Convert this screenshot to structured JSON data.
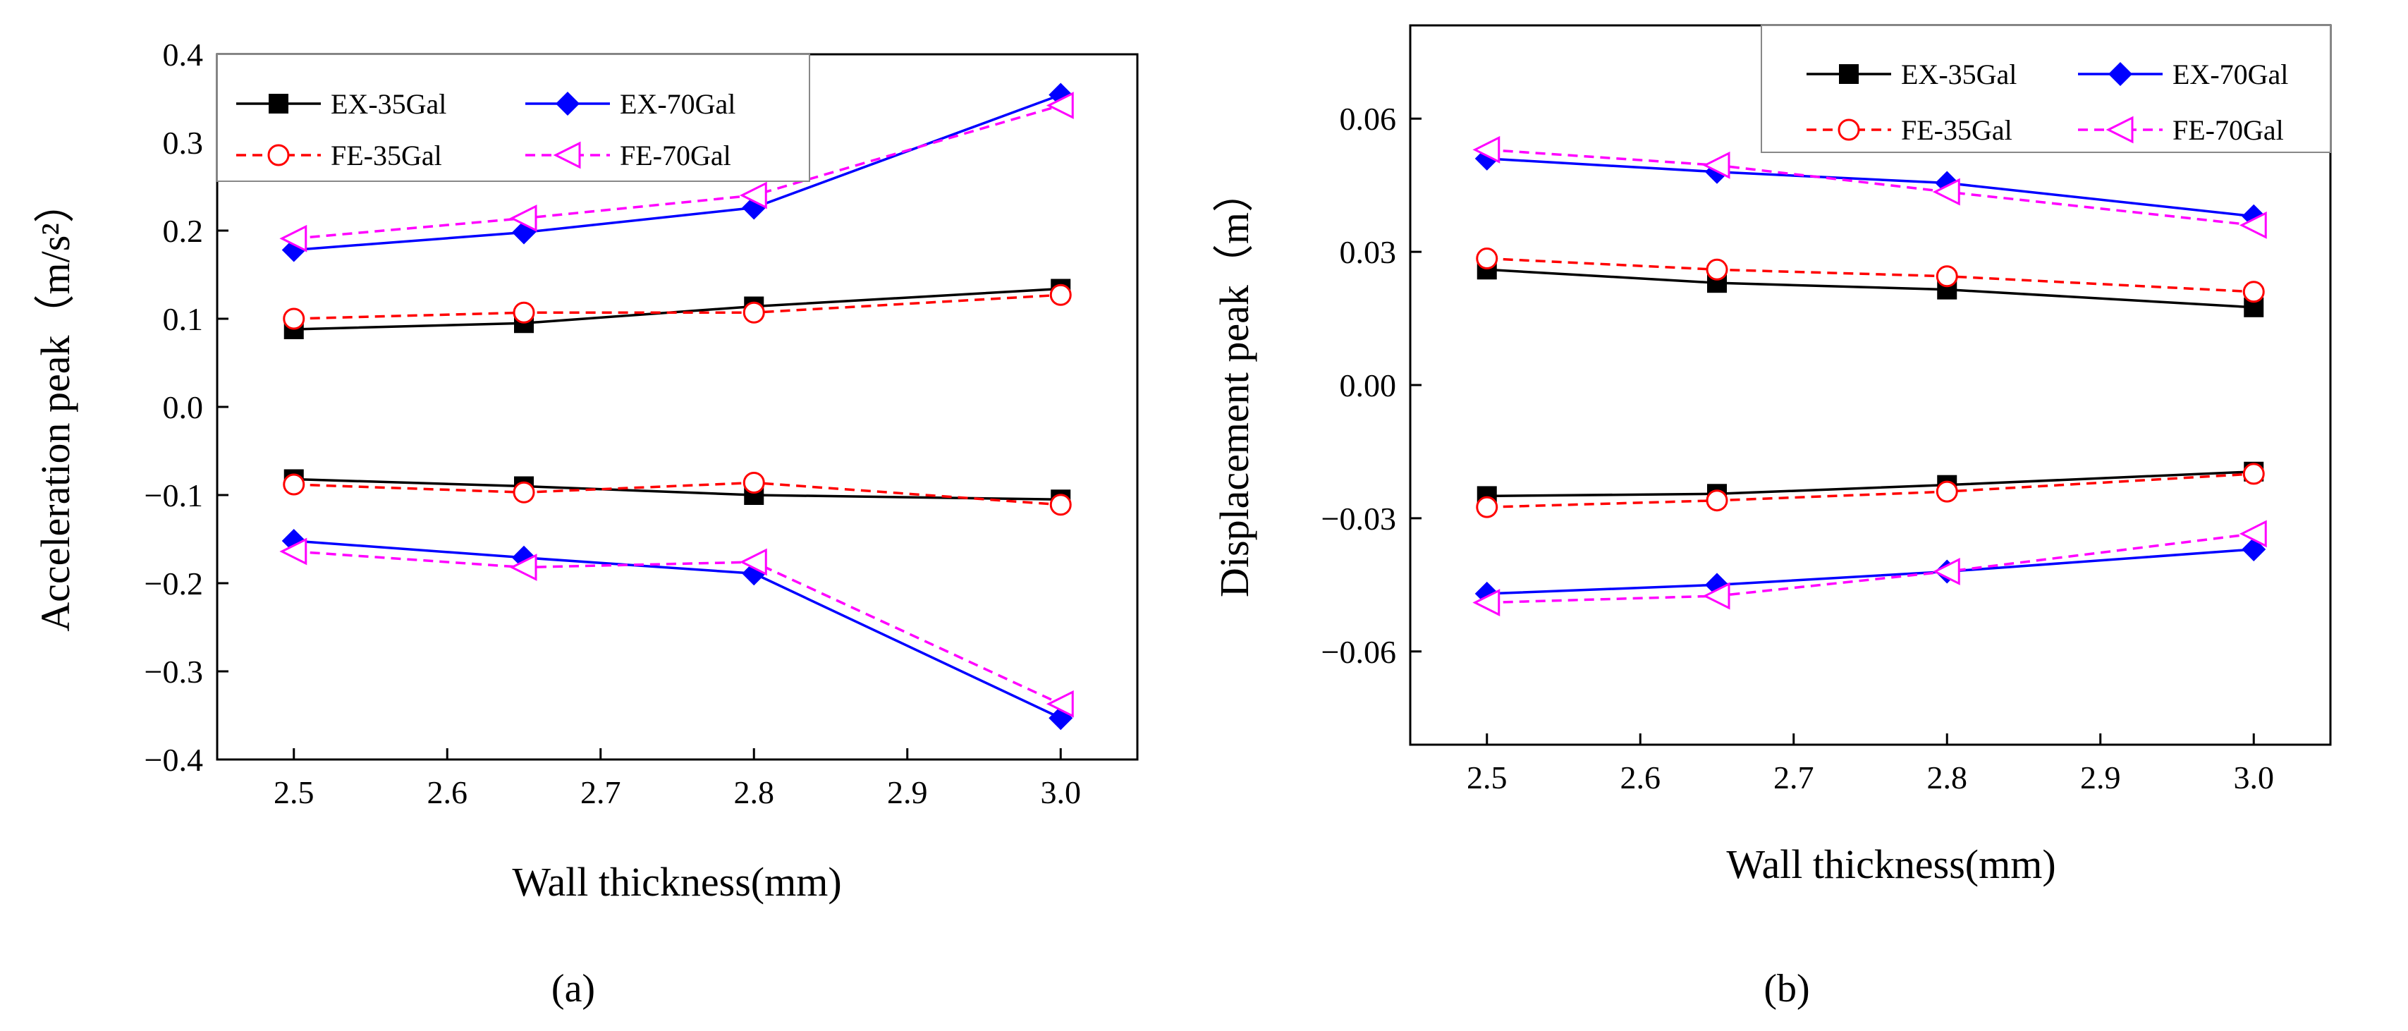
{
  "chart_data": [
    {
      "type": "line",
      "panel_label": "(a)",
      "xlabel": "Wall thickness(mm)",
      "ylabel": "Acceleration peak（m/s²）",
      "xlim": [
        2.45,
        3.05
      ],
      "ylim": [
        -0.4,
        0.4
      ],
      "xticks": [
        2.5,
        2.6,
        2.7,
        2.8,
        2.9,
        3.0
      ],
      "xtick_labels": [
        "2.5",
        "2.6",
        "2.7",
        "2.8",
        "2.9",
        "3.0"
      ],
      "yticks": [
        -0.4,
        -0.3,
        -0.2,
        -0.1,
        0.0,
        0.1,
        0.2,
        0.3,
        0.4
      ],
      "ytick_labels": [
        "-0.4",
        "-0.3",
        "-0.2",
        "-0.1",
        "0.0",
        "0.1",
        "0.2",
        "0.3",
        "0.4"
      ],
      "legend_location": "top-left",
      "series": [
        {
          "name": "EX-35Gal",
          "color": "#000000",
          "dash": "solid",
          "marker": "square",
          "x": [
            2.5,
            2.65,
            2.8,
            3.0
          ],
          "positive": [
            0.088,
            0.095,
            0.114,
            0.134
          ],
          "negative": [
            -0.082,
            -0.09,
            -0.1,
            -0.105
          ]
        },
        {
          "name": "EX-70Gal",
          "color": "#0000ff",
          "dash": "solid",
          "marker": "diamond",
          "x": [
            2.5,
            2.65,
            2.8,
            3.0
          ],
          "positive": [
            0.178,
            0.198,
            0.226,
            0.354
          ],
          "negative": [
            -0.152,
            -0.171,
            -0.189,
            -0.353
          ]
        },
        {
          "name": "FE-35Gal",
          "color": "#ff0000",
          "dash": "dashed",
          "marker": "circle",
          "x": [
            2.5,
            2.65,
            2.8,
            3.0
          ],
          "positive": [
            0.1,
            0.107,
            0.107,
            0.127
          ],
          "negative": [
            -0.088,
            -0.097,
            -0.086,
            -0.111
          ]
        },
        {
          "name": "FE-70Gal",
          "color": "#ff00ff",
          "dash": "dashed",
          "marker": "triangle-left",
          "x": [
            2.5,
            2.65,
            2.8,
            3.0
          ],
          "positive": [
            0.191,
            0.214,
            0.24,
            0.342
          ],
          "negative": [
            -0.164,
            -0.182,
            -0.176,
            -0.337
          ]
        }
      ]
    },
    {
      "type": "line",
      "panel_label": "(b)",
      "xlabel": "Wall thickness(mm)",
      "ylabel": "Displacement peak（m）",
      "xlim": [
        2.45,
        3.05
      ],
      "ylim": [
        -0.081,
        0.081
      ],
      "xticks": [
        2.5,
        2.6,
        2.7,
        2.8,
        2.9,
        3.0
      ],
      "xtick_labels": [
        "2.5",
        "2.6",
        "2.7",
        "2.8",
        "2.9",
        "3.0"
      ],
      "yticks": [
        -0.06,
        -0.03,
        0.0,
        0.03,
        0.06
      ],
      "ytick_labels": [
        "-0.06",
        "-0.03",
        "0.00",
        "0.03",
        "0.06"
      ],
      "legend_location": "top-right",
      "series": [
        {
          "name": "EX-35Gal",
          "color": "#000000",
          "dash": "solid",
          "marker": "square",
          "x": [
            2.5,
            2.65,
            2.8,
            3.0
          ],
          "positive": [
            0.026,
            0.023,
            0.0215,
            0.0175
          ],
          "negative": [
            -0.025,
            -0.0245,
            -0.0225,
            -0.0195
          ]
        },
        {
          "name": "EX-70Gal",
          "color": "#0000ff",
          "dash": "solid",
          "marker": "diamond",
          "x": [
            2.5,
            2.65,
            2.8,
            3.0
          ],
          "positive": [
            0.051,
            0.048,
            0.0455,
            0.038
          ],
          "negative": [
            -0.047,
            -0.045,
            -0.042,
            -0.037
          ]
        },
        {
          "name": "FE-35Gal",
          "color": "#ff0000",
          "dash": "dashed",
          "marker": "circle",
          "x": [
            2.5,
            2.65,
            2.8,
            3.0
          ],
          "positive": [
            0.0285,
            0.026,
            0.0245,
            0.021
          ],
          "negative": [
            -0.0275,
            -0.026,
            -0.024,
            -0.02
          ]
        },
        {
          "name": "FE-70Gal",
          "color": "#ff00ff",
          "dash": "dashed",
          "marker": "triangle-left",
          "x": [
            2.5,
            2.65,
            2.8,
            3.0
          ],
          "positive": [
            0.053,
            0.0495,
            0.0435,
            0.036
          ],
          "negative": [
            -0.049,
            -0.0475,
            -0.042,
            -0.0335
          ]
        }
      ]
    }
  ]
}
